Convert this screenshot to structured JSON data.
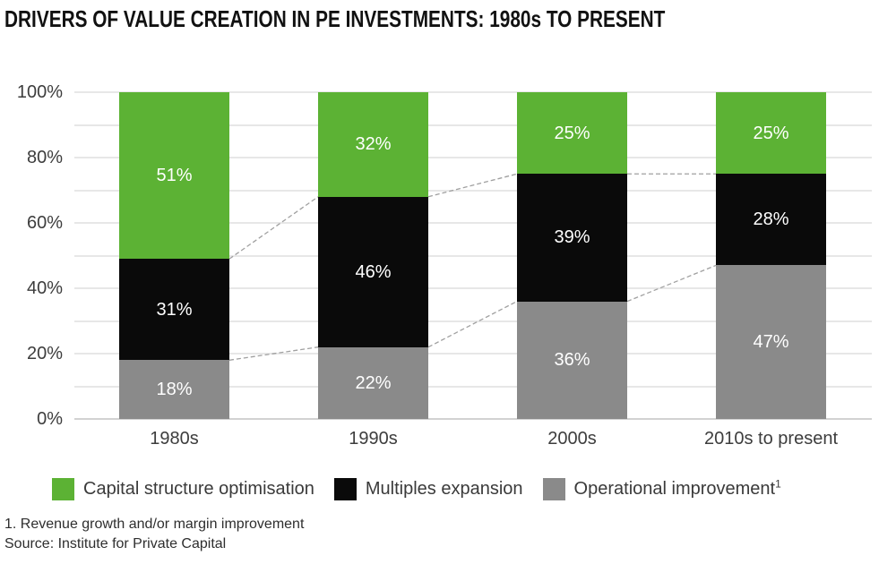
{
  "title": "DRIVERS OF VALUE CREATION IN PE INVESTMENTS: 1980s TO PRESENT",
  "footnotes": [
    "1. Revenue growth and/or margin improvement",
    "Source: Institute for Private Capital"
  ],
  "colors": {
    "green": "#5CB234",
    "black": "#0A0A0A",
    "gray": "#8A8A8A",
    "gridline": "#E7E7E7",
    "axis_baseline": "#D2D2D2",
    "connector": "#A0A0A0",
    "axis_text": "#3D3D3D",
    "value_label_text": "#FFFFFF"
  },
  "chart_data": {
    "type": "bar",
    "stacked": true,
    "title": "DRIVERS OF VALUE CREATION IN PE INVESTMENTS: 1980s TO PRESENT",
    "categories": [
      "1980s",
      "1990s",
      "2000s",
      "2010s to present"
    ],
    "series": [
      {
        "name": "Operational improvement",
        "footnote_marker": "1",
        "color": "#8A8A8A",
        "values": [
          18,
          22,
          36,
          47
        ]
      },
      {
        "name": "Multiples expansion",
        "footnote_marker": "",
        "color": "#0A0A0A",
        "values": [
          31,
          46,
          39,
          28
        ]
      },
      {
        "name": "Capital structure optimisation",
        "footnote_marker": "",
        "color": "#5CB234",
        "values": [
          51,
          32,
          25,
          25
        ]
      }
    ],
    "stacking_order_note": "series listed bottom-to-top; totals are 100% per bar",
    "value_label_suffix": "%",
    "y_axis": {
      "min": 0,
      "max": 100,
      "major_tick_labels": [
        "0%",
        "20%",
        "40%",
        "60%",
        "80%",
        "100%"
      ],
      "major_step": 20,
      "minor_gridline_step": 10,
      "grid": true
    },
    "connectors": "dashed gray lines join the two internal segment boundaries of adjacent bars",
    "legend_position": "bottom",
    "legend": [
      {
        "label": "Capital structure optimisation",
        "color": "#5CB234",
        "sup": ""
      },
      {
        "label": "Multiples expansion",
        "color": "#0A0A0A",
        "sup": ""
      },
      {
        "label": "Operational improvement",
        "color": "#8A8A8A",
        "sup": "1"
      }
    ]
  }
}
